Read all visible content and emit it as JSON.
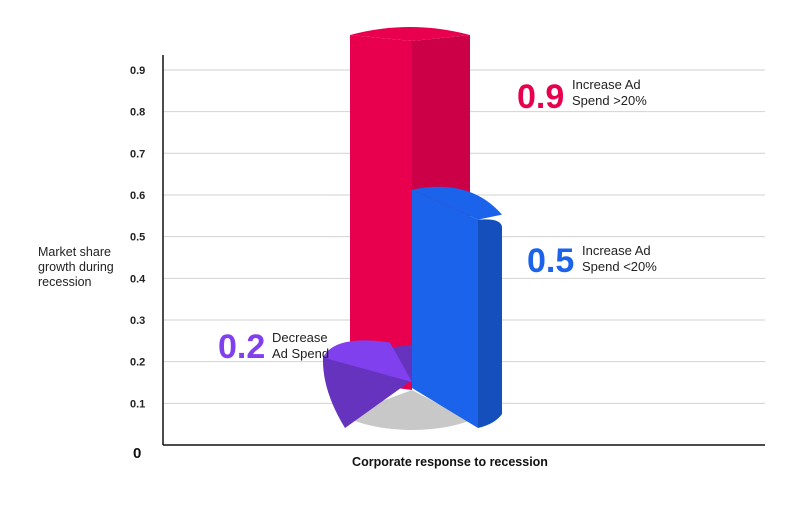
{
  "chart_data": {
    "type": "bar",
    "style": "3d-cylindrical-sectors",
    "title": "",
    "xlabel": "Corporate response to recession",
    "ylabel": "Market share growth during recession",
    "ylabel_lines": [
      "Market share",
      "growth during",
      "recession"
    ],
    "y_ticks": [
      "0.1",
      "0.2",
      "0.3",
      "0.4",
      "0.5",
      "0.6",
      "0.7",
      "0.8",
      "0.9"
    ],
    "y_zero_label": "0",
    "ylim": [
      0,
      0.9
    ],
    "grid": true,
    "categories": [
      "Increase Ad Spend >20%",
      "Increase Ad Spend <20%",
      "Decrease Ad Spend"
    ],
    "values": [
      0.9,
      0.5,
      0.2
    ],
    "value_labels": [
      "0.9",
      "0.5",
      "0.2"
    ],
    "label_lines": [
      [
        "Increase Ad",
        "Spend >20%"
      ],
      [
        "Increase Ad",
        "Spend <20%"
      ],
      [
        "Decrease",
        "Ad Spend"
      ]
    ],
    "colors": [
      "#e8004f",
      "#1a63ea",
      "#8040ee"
    ],
    "base_color": "#c8c8c8"
  }
}
